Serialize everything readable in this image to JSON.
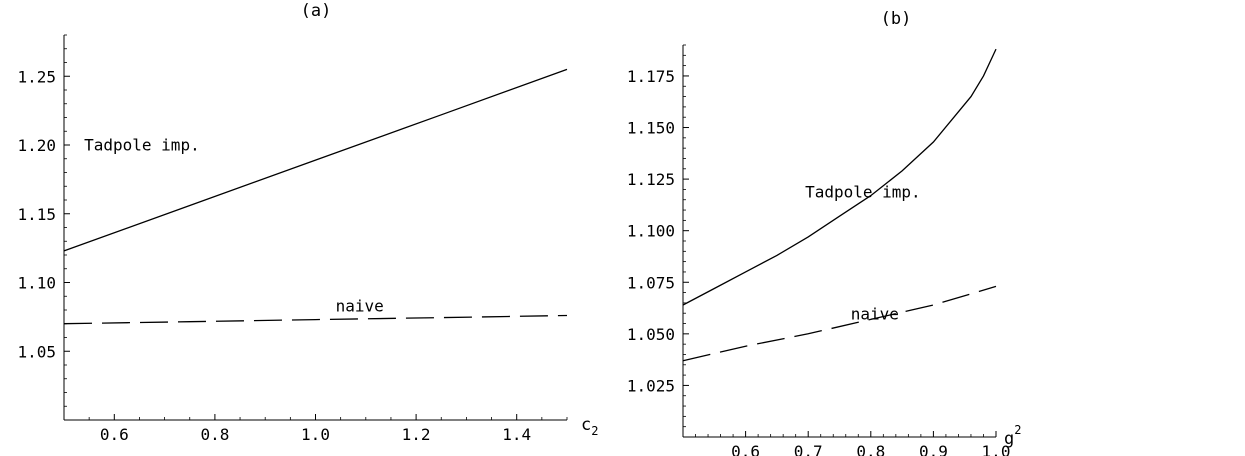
{
  "chart_data": [
    {
      "type": "line",
      "title": "(a)",
      "xlabel_main": "c",
      "xlabel_sub": "2",
      "ylabel": "",
      "xlim": [
        0.5,
        1.5
      ],
      "ylim": [
        1.0,
        1.28
      ],
      "x_axis_at_y": 1.0,
      "y_axis_at_x": 0.5,
      "xticks": [
        0.6,
        0.8,
        1.0,
        1.2,
        1.4
      ],
      "xtick_labels": [
        "0.6",
        "0.8",
        "1.0",
        "1.2",
        "1.4"
      ],
      "xminor_step": 0.05,
      "yticks": [
        1.05,
        1.1,
        1.15,
        1.2,
        1.25
      ],
      "ytick_labels": [
        "1.05",
        "1.10",
        "1.15",
        "1.20",
        "1.25"
      ],
      "yminor_step": 0.01,
      "grid": false,
      "series": [
        {
          "label": "Tadpole imp.",
          "dash": "solid",
          "label_at": [
            0.54,
            1.196
          ],
          "x": [
            0.5,
            0.75,
            1.0,
            1.25,
            1.5
          ],
          "y": [
            1.123,
            1.156,
            1.189,
            1.222,
            1.255
          ]
        },
        {
          "label": "naive",
          "dash": "dashed",
          "label_at": [
            1.04,
            1.079
          ],
          "x": [
            0.5,
            0.75,
            1.0,
            1.25,
            1.5
          ],
          "y": [
            1.07,
            1.0715,
            1.073,
            1.0745,
            1.076
          ]
        }
      ]
    },
    {
      "type": "line",
      "title": "(b)",
      "xlabel_main": "g",
      "xlabel_sup": "2",
      "ylabel": "",
      "xlim": [
        0.5,
        1.0
      ],
      "ylim": [
        1.0,
        1.19
      ],
      "x_axis_at_y": 1.0,
      "y_axis_at_x": 0.5,
      "xticks": [
        0.6,
        0.7,
        0.8,
        0.9,
        1.0
      ],
      "xtick_labels": [
        "0.6",
        "0.7",
        "0.8",
        "0.9",
        "1.0"
      ],
      "xminor_step": 0.02,
      "yticks": [
        1.025,
        1.05,
        1.075,
        1.1,
        1.125,
        1.15,
        1.175
      ],
      "ytick_labels": [
        "1.025",
        "1.050",
        "1.075",
        "1.100",
        "1.125",
        "1.150",
        "1.175"
      ],
      "yminor_step": 0.005,
      "grid": false,
      "series": [
        {
          "label": "Tadpole imp.",
          "dash": "solid",
          "label_at": [
            0.695,
            1.116
          ],
          "x": [
            0.5,
            0.55,
            0.6,
            0.65,
            0.7,
            0.75,
            0.8,
            0.85,
            0.9,
            0.93,
            0.96,
            0.98,
            1.0
          ],
          "y": [
            1.064,
            1.072,
            1.08,
            1.088,
            1.097,
            1.107,
            1.117,
            1.129,
            1.143,
            1.154,
            1.165,
            1.175,
            1.188
          ]
        },
        {
          "label": "naive",
          "dash": "dashed",
          "label_at": [
            0.768,
            1.057
          ],
          "x": [
            0.5,
            0.6,
            0.7,
            0.8,
            0.9,
            1.0
          ],
          "y": [
            1.037,
            1.044,
            1.05,
            1.057,
            1.064,
            1.073
          ]
        }
      ]
    }
  ]
}
